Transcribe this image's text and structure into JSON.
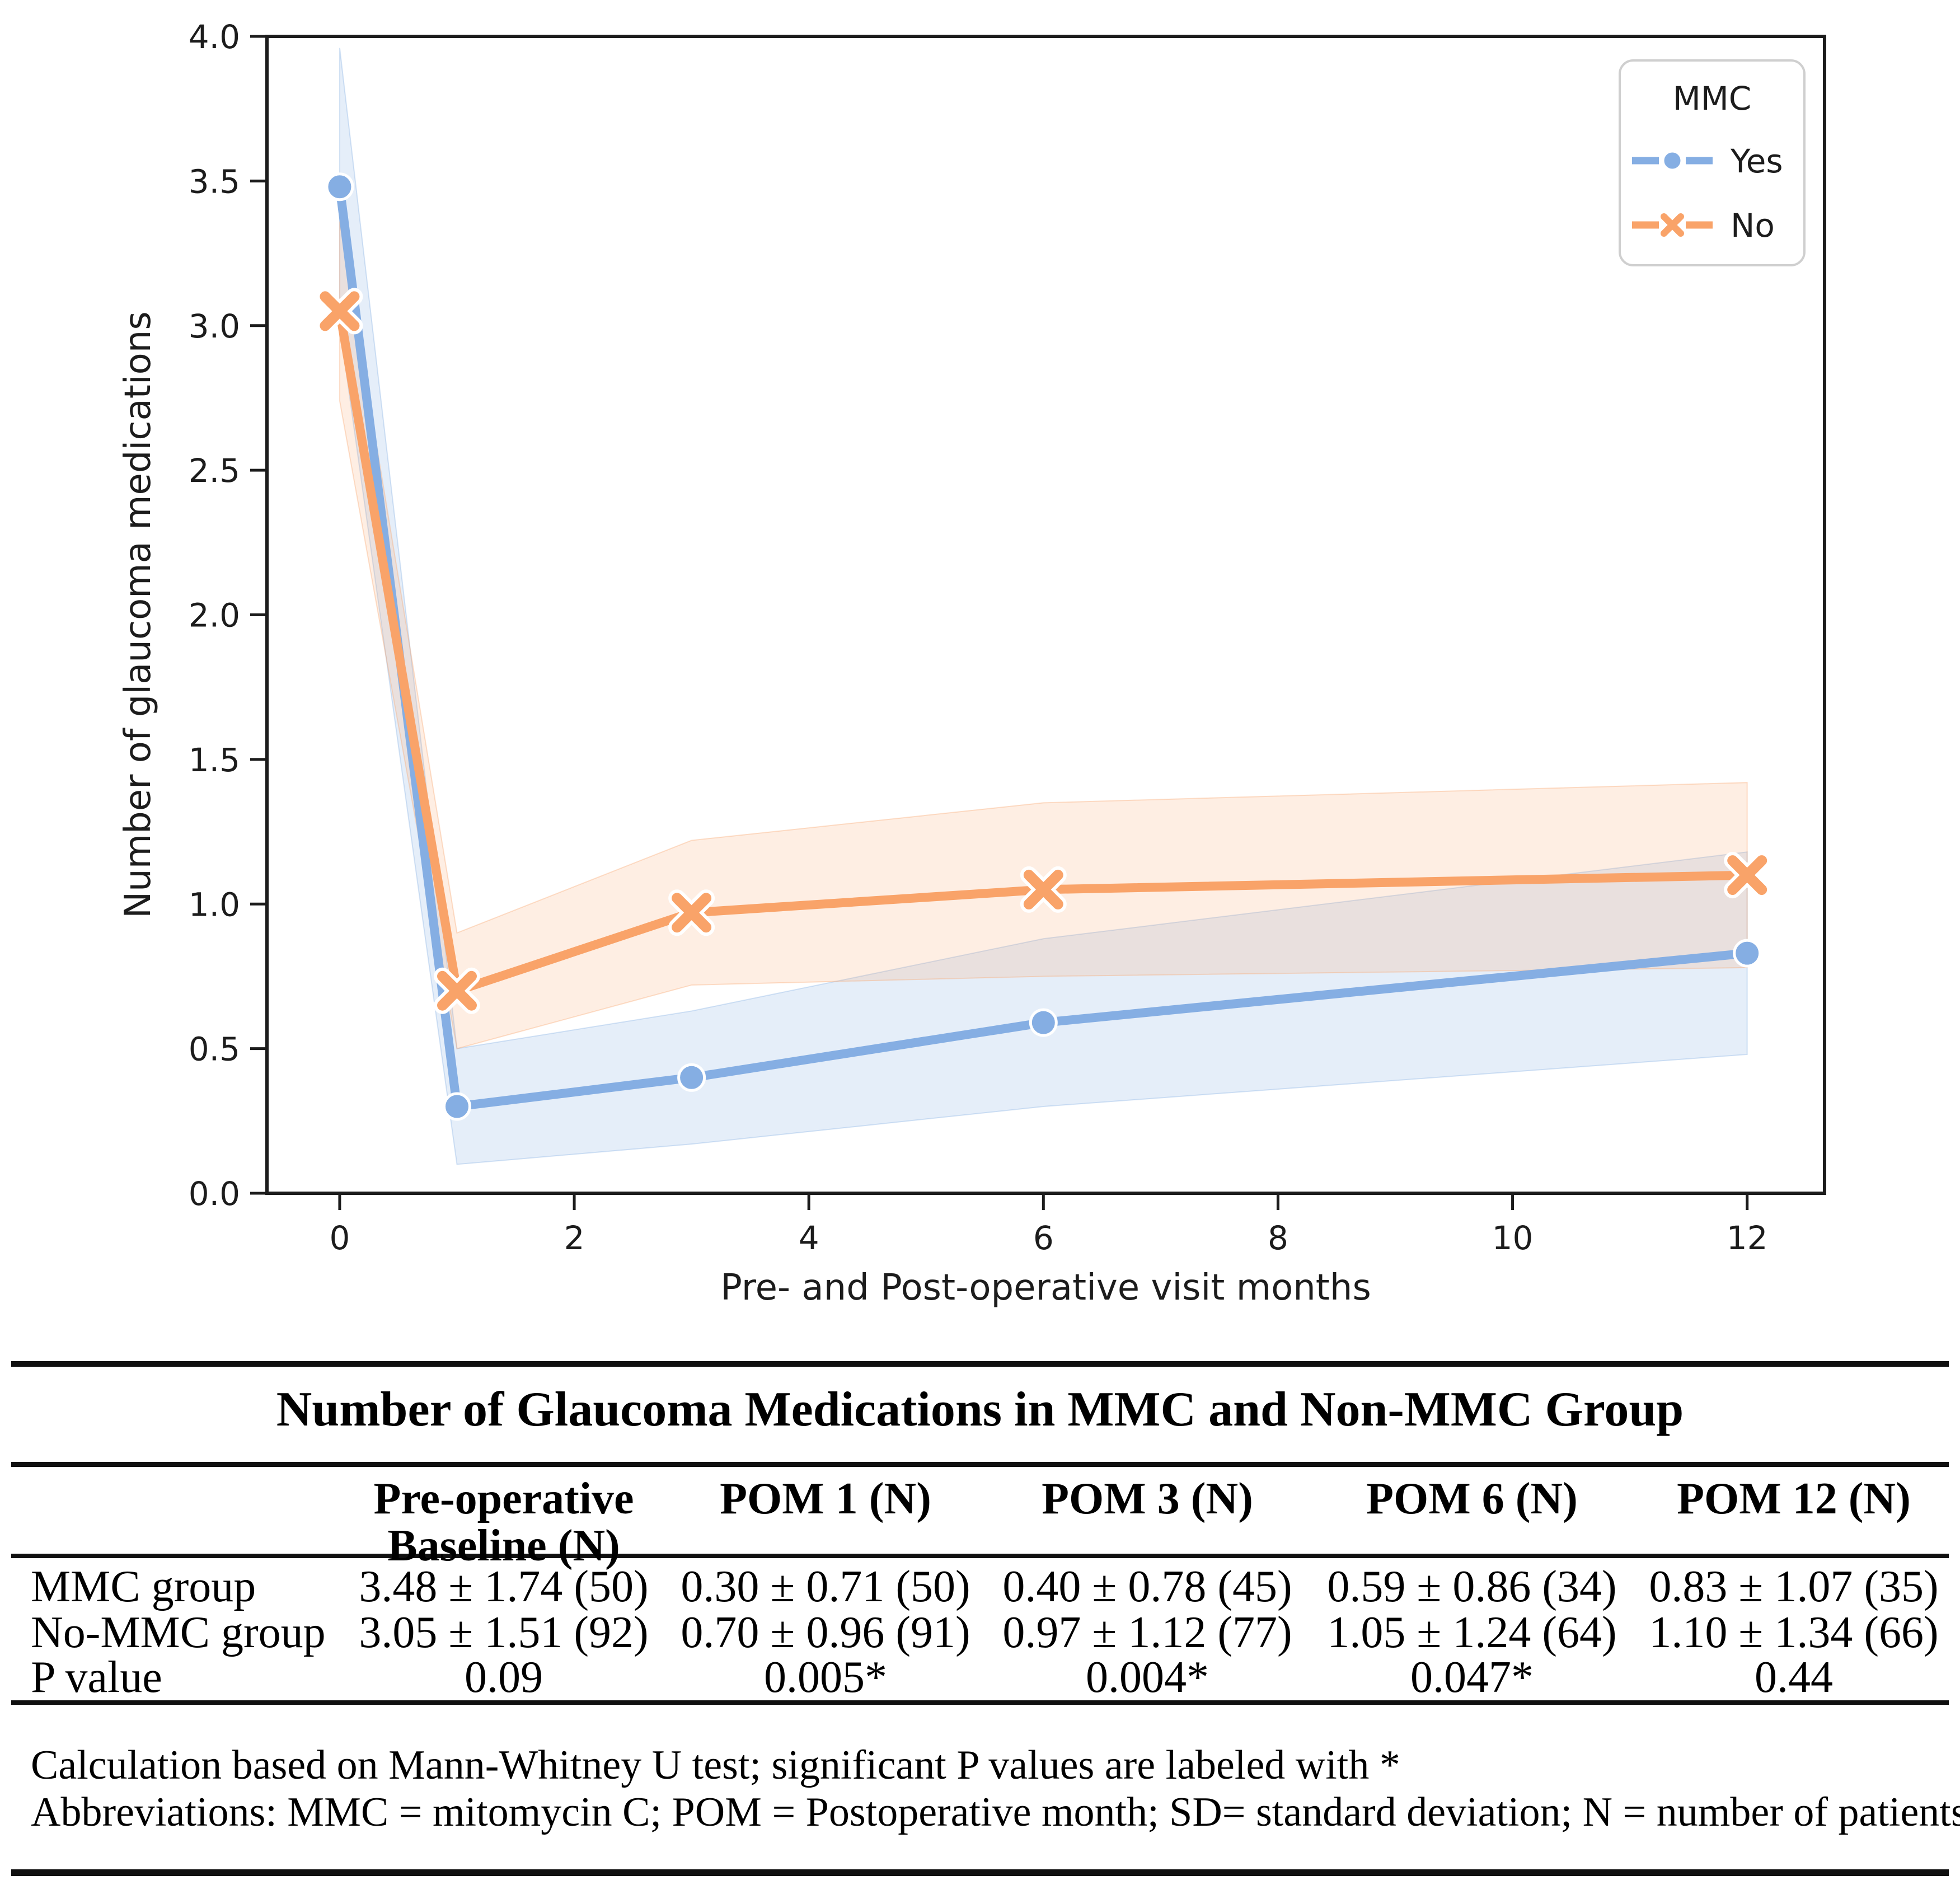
{
  "chart": {
    "ylabel": "Number of glaucoma medications",
    "xlabel": "Pre- and Post-operative visit months",
    "x_ticks": {
      "values": [
        0,
        2,
        4,
        6,
        8,
        10,
        12
      ],
      "labels": [
        "0",
        "2",
        "4",
        "6",
        "8",
        "10",
        "12"
      ]
    },
    "y_ticks": {
      "values": [
        0.0,
        0.5,
        1.0,
        1.5,
        2.0,
        2.5,
        3.0,
        3.5,
        4.0
      ],
      "labels": [
        "0.0",
        "0.5",
        "1.0",
        "1.5",
        "2.0",
        "2.5",
        "3.0",
        "3.5",
        "4.0"
      ]
    },
    "legend": {
      "title": "MMC",
      "items": [
        {
          "label": "Yes",
          "series": 0
        },
        {
          "label": "No",
          "series": 1
        }
      ]
    },
    "colors": {
      "axis": "#1c1c1c",
      "legend_border": "#cfcfcf",
      "text": "#1c1c1c"
    }
  },
  "chart_data": {
    "type": "line",
    "x": [
      0,
      1,
      3,
      6,
      12
    ],
    "series": [
      {
        "name": "Yes",
        "group": "MMC group",
        "color": "#85AEE3",
        "marker": "circle",
        "values": [
          3.48,
          0.3,
          0.4,
          0.59,
          0.83
        ],
        "sd": [
          1.74,
          0.71,
          0.78,
          0.86,
          1.07
        ],
        "n": [
          50,
          50,
          45,
          34,
          35
        ],
        "ci_low": [
          3.0,
          0.1,
          0.17,
          0.3,
          0.48
        ],
        "ci_high": [
          3.96,
          0.5,
          0.63,
          0.88,
          1.18
        ],
        "band_opacity": 0.21
      },
      {
        "name": "No",
        "group": "No-MMC group",
        "color": "#F9A369",
        "marker": "x",
        "values": [
          3.05,
          0.7,
          0.97,
          1.05,
          1.1
        ],
        "sd": [
          1.51,
          0.96,
          1.12,
          1.24,
          1.34
        ],
        "n": [
          92,
          91,
          77,
          64,
          66
        ],
        "ci_low": [
          2.74,
          0.5,
          0.72,
          0.75,
          0.78
        ],
        "ci_high": [
          3.36,
          0.9,
          1.22,
          1.35,
          1.42
        ],
        "band_opacity": 0.19
      }
    ],
    "title": "",
    "xlabel": "Pre- and Post-operative visit months",
    "ylabel": "Number of glaucoma medications",
    "xlim": [
      -0.62,
      12.66
    ],
    "ylim": [
      0,
      4
    ],
    "grid": false,
    "legend_position": "upper right",
    "band_type": "95% CI"
  },
  "table": {
    "title": "Number of Glaucoma Medications in MMC and Non-MMC Group",
    "columns": [
      "Pre-operative\nBaseline (N)",
      "POM 1 (N)",
      "POM 3 (N)",
      "POM 6 (N)",
      "POM 12 (N)"
    ],
    "rows": [
      {
        "label": "MMC group",
        "values": [
          "3.48 ± 1.74 (50)",
          "0.30 ± 0.71 (50)",
          "0.40 ± 0.78 (45)",
          "0.59 ± 0.86 (34)",
          "0.83 ± 1.07 (35)"
        ]
      },
      {
        "label": "No-MMC group",
        "values": [
          "3.05 ± 1.51 (92)",
          "0.70 ± 0.96 (91)",
          "0.97 ± 1.12 (77)",
          "1.05 ± 1.24 (64)",
          "1.10 ± 1.34 (66)"
        ]
      },
      {
        "label": "P value",
        "values": [
          "0.09",
          "0.005*",
          "0.004*",
          "0.047*",
          "0.44"
        ]
      }
    ]
  },
  "footnotes": [
    "Calculation based on Mann-Whitney U test; significant P values are labeled with *",
    "Abbreviations: MMC = mitomycin C; POM = Postoperative month; SD= standard deviation; N = number of patients"
  ]
}
